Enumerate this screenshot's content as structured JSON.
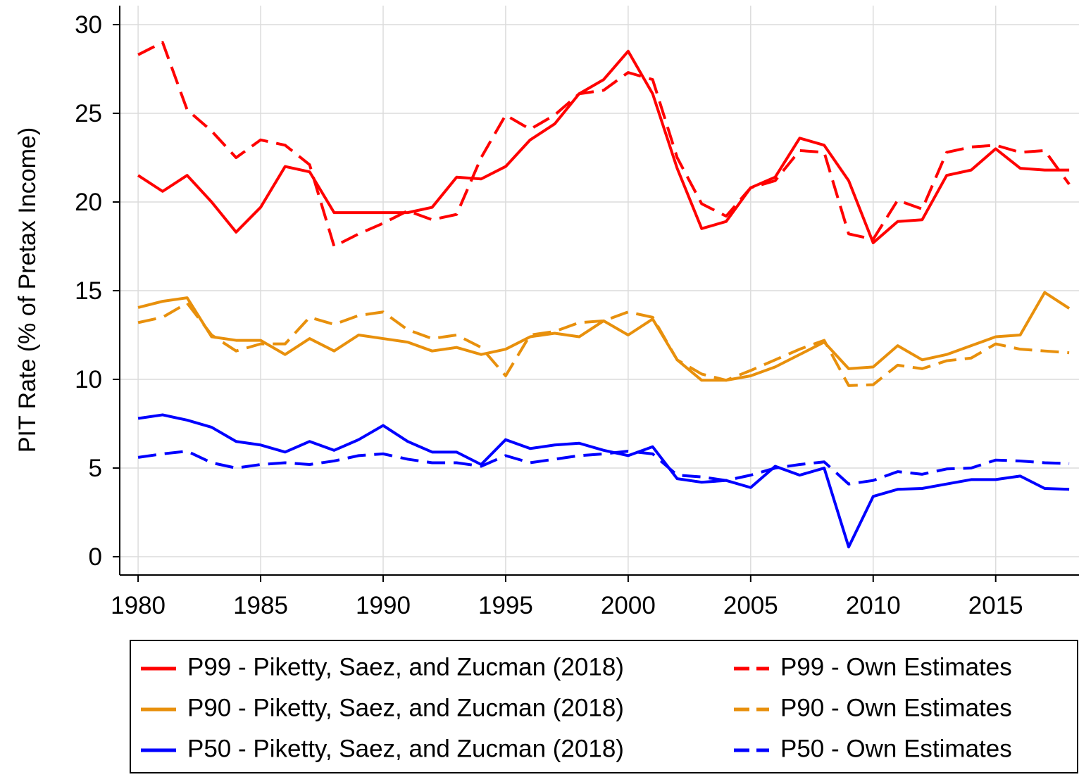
{
  "chart_data": {
    "type": "line",
    "y_label": "PIT Rate (% of Pretax Income)",
    "x": [
      1980,
      1981,
      1982,
      1983,
      1984,
      1985,
      1986,
      1987,
      1988,
      1989,
      1990,
      1991,
      1992,
      1993,
      1994,
      1995,
      1996,
      1997,
      1998,
      1999,
      2000,
      2001,
      2002,
      2003,
      2004,
      2005,
      2006,
      2007,
      2008,
      2009,
      2010,
      2011,
      2012,
      2013,
      2014,
      2015,
      2016,
      2017,
      2018
    ],
    "xlim": [
      1979.25,
      2018.4
    ],
    "xticks": [
      1980,
      1985,
      1990,
      1995,
      2000,
      2005,
      2010,
      2015
    ],
    "ylim": [
      -1.03,
      31.07
    ],
    "yticks": [
      0,
      5,
      10,
      15,
      20,
      25,
      30
    ],
    "grid": true,
    "series": [
      {
        "name": "P99 - Piketty, Saez, and Zucman (2018)",
        "color": "#ff0000",
        "dashed": false,
        "values": [
          21.5,
          20.6,
          21.5,
          20.0,
          18.3,
          19.7,
          22.0,
          21.7,
          19.4,
          19.4,
          19.4,
          19.4,
          19.7,
          21.4,
          21.3,
          22.0,
          23.5,
          24.4,
          26.1,
          26.9,
          28.5,
          26.1,
          21.9,
          18.5,
          18.9,
          20.8,
          21.4,
          23.6,
          23.2,
          21.2,
          17.7,
          18.9,
          19.0,
          21.5,
          21.8,
          23.0,
          21.9,
          21.8,
          21.8
        ]
      },
      {
        "name": "P99 - Own Estimates",
        "color": "#ff0000",
        "dashed": true,
        "values": [
          28.3,
          29.0,
          25.2,
          24.0,
          22.5,
          23.5,
          23.2,
          22.1,
          17.5,
          18.2,
          18.8,
          19.5,
          19.0,
          19.3,
          22.5,
          24.9,
          24.1,
          24.9,
          26.1,
          26.3,
          27.3,
          26.9,
          22.5,
          19.9,
          19.2,
          20.8,
          21.2,
          22.9,
          22.8,
          18.2,
          17.9,
          20.1,
          19.6,
          22.8,
          23.1,
          23.2,
          22.8,
          22.9,
          21.0
        ]
      },
      {
        "name": "P90 - Piketty, Saez, and Zucman (2018)",
        "color": "#e8900c",
        "dashed": false,
        "values": [
          14.05,
          14.4,
          14.6,
          12.4,
          12.2,
          12.2,
          11.4,
          12.3,
          11.6,
          12.5,
          12.3,
          12.1,
          11.6,
          11.8,
          11.4,
          11.7,
          12.4,
          12.6,
          12.4,
          13.3,
          12.5,
          13.4,
          11.1,
          9.95,
          9.95,
          10.2,
          10.7,
          11.4,
          12.1,
          10.6,
          10.7,
          11.9,
          11.1,
          11.4,
          11.9,
          12.4,
          12.5,
          14.9,
          14.0
        ]
      },
      {
        "name": "P90 - Own Estimates",
        "color": "#e8900c",
        "dashed": true,
        "values": [
          13.2,
          13.5,
          14.3,
          12.5,
          11.6,
          12.0,
          12.0,
          13.5,
          13.1,
          13.6,
          13.8,
          12.8,
          12.3,
          12.5,
          11.8,
          10.2,
          12.5,
          12.7,
          13.2,
          13.3,
          13.8,
          13.5,
          11.1,
          10.3,
          9.95,
          10.5,
          11.1,
          11.7,
          12.2,
          9.65,
          9.7,
          10.8,
          10.6,
          11.05,
          11.2,
          12.0,
          11.7,
          11.6,
          11.5
        ]
      },
      {
        "name": "P50 - Piketty, Saez, and Zucman (2018)",
        "color": "#0000ff",
        "dashed": false,
        "values": [
          7.8,
          8.0,
          7.7,
          7.3,
          6.5,
          6.3,
          5.9,
          6.5,
          6.0,
          6.6,
          7.4,
          6.5,
          5.9,
          5.9,
          5.2,
          6.6,
          6.1,
          6.3,
          6.4,
          6.0,
          5.7,
          6.2,
          4.4,
          4.2,
          4.3,
          3.9,
          5.1,
          4.6,
          5.0,
          0.55,
          3.4,
          3.8,
          3.85,
          4.1,
          4.35,
          4.35,
          4.55,
          3.85,
          3.8
        ]
      },
      {
        "name": "P50 - Own Estimates",
        "color": "#0000ff",
        "dashed": true,
        "values": [
          5.6,
          5.8,
          5.95,
          5.3,
          5.0,
          5.2,
          5.3,
          5.2,
          5.4,
          5.7,
          5.8,
          5.5,
          5.3,
          5.3,
          5.1,
          5.7,
          5.3,
          5.5,
          5.7,
          5.8,
          5.95,
          5.8,
          4.6,
          4.5,
          4.3,
          4.6,
          5.0,
          5.2,
          5.35,
          4.1,
          4.3,
          4.8,
          4.65,
          4.95,
          5.0,
          5.45,
          5.4,
          5.3,
          5.25
        ]
      }
    ]
  }
}
